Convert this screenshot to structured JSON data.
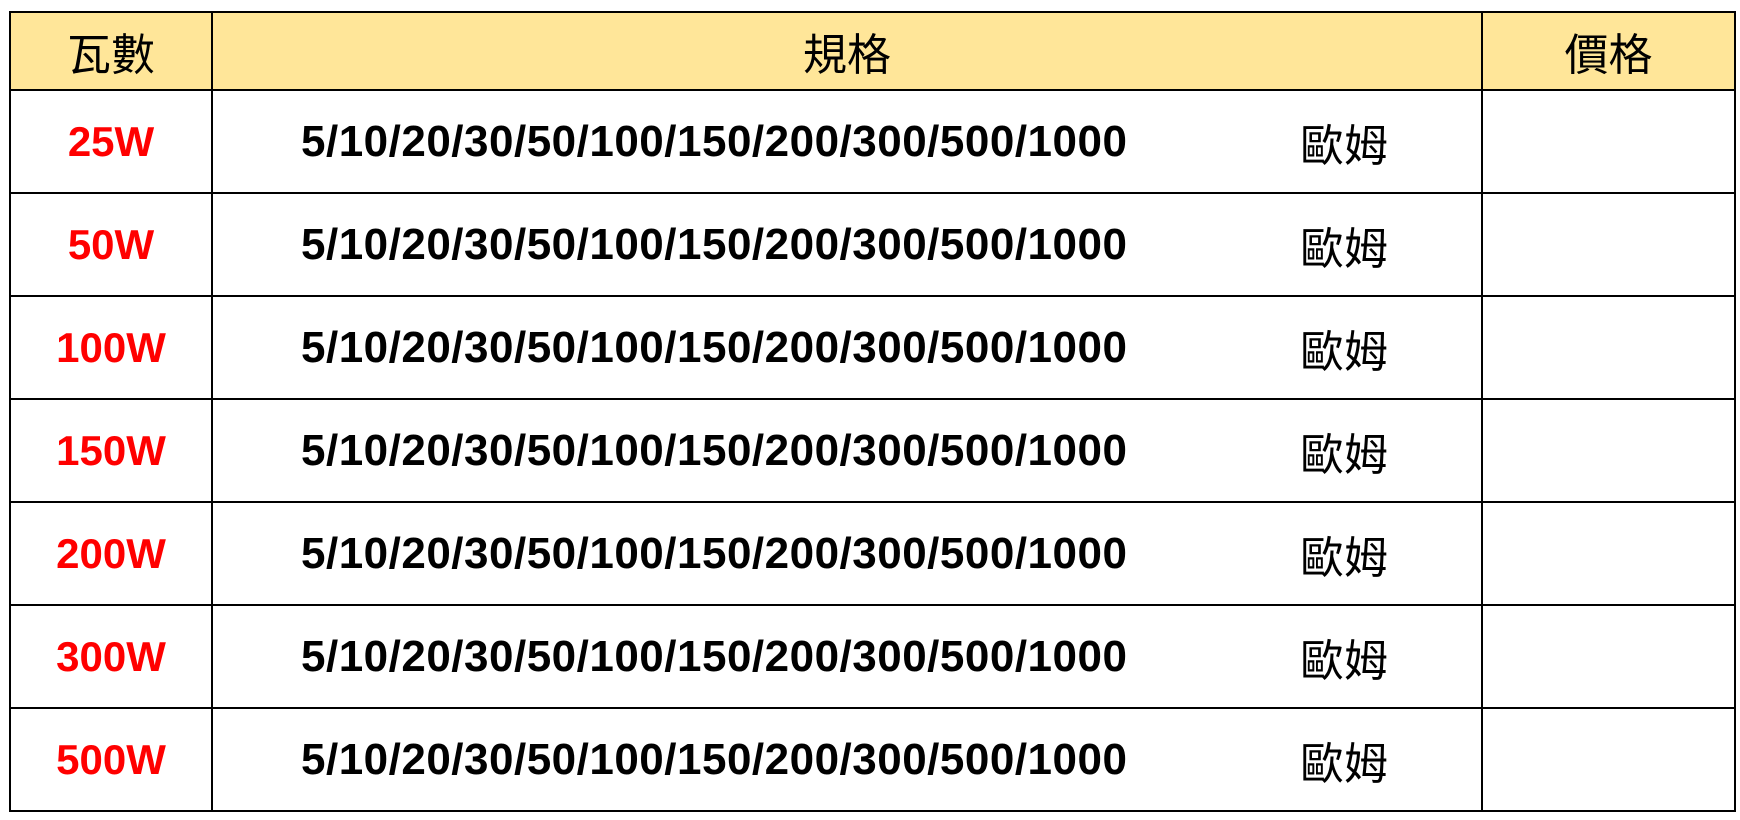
{
  "header": {
    "watt": "瓦數",
    "spec": "規格",
    "price": "價格"
  },
  "rows": [
    {
      "watt": "25W",
      "spec": "5/10/20/30/50/100/150/200/300/500/1000",
      "unit": "歐姆",
      "price": ""
    },
    {
      "watt": "50W",
      "spec": "5/10/20/30/50/100/150/200/300/500/1000",
      "unit": "歐姆",
      "price": ""
    },
    {
      "watt": "100W",
      "spec": "5/10/20/30/50/100/150/200/300/500/1000",
      "unit": "歐姆",
      "price": ""
    },
    {
      "watt": "150W",
      "spec": "5/10/20/30/50/100/150/200/300/500/1000",
      "unit": "歐姆",
      "price": ""
    },
    {
      "watt": "200W",
      "spec": "5/10/20/30/50/100/150/200/300/500/1000",
      "unit": "歐姆",
      "price": ""
    },
    {
      "watt": "300W",
      "spec": "5/10/20/30/50/100/150/200/300/500/1000",
      "unit": "歐姆",
      "price": ""
    },
    {
      "watt": "500W",
      "spec": "5/10/20/30/50/100/150/200/300/500/1000",
      "unit": "歐姆",
      "price": ""
    }
  ],
  "colors": {
    "header_bg": "#ffe699",
    "watt_text": "#ff0000"
  }
}
